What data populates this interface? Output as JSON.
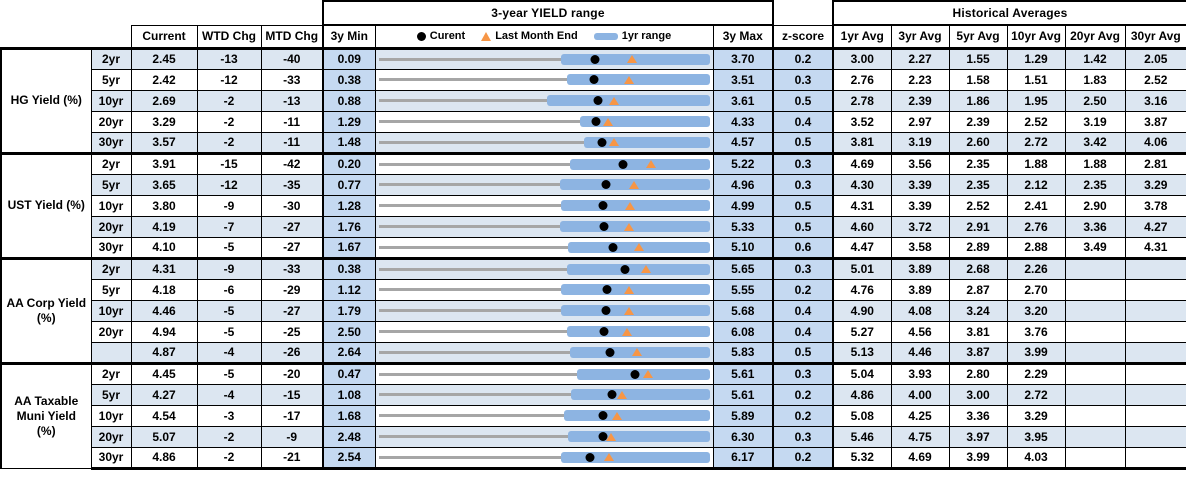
{
  "header": {
    "hist_title": "Historical Averages",
    "col_current": "Current",
    "col_wtd": "WTD Chg",
    "col_mtd": "MTD Chg",
    "col_min": "3y Min",
    "col_max": "3y Max",
    "col_zscore": "z-score",
    "avg_cols": [
      "1yr Avg",
      "3yr Avg",
      "5yr Avg",
      "10yr Avg",
      "20yr Avg",
      "30yr Avg"
    ],
    "legend": {
      "current": "Curent",
      "last_month": "Last Month End",
      "range": "1yr range"
    }
  },
  "colors": {
    "row_band": "#dce6f1",
    "minmax_fill": "#c5d9f1",
    "bar_1yr": "#8db4e2",
    "line_3yr": "#a6a6a6",
    "current_dot": "#000000",
    "last_month_triangle": "#f79646"
  },
  "chart_data": {
    "type": "table",
    "title": "3-year YIELD range",
    "legend_position": "top",
    "groups": [
      {
        "label": "HG Yield (%)",
        "rows": [
          {
            "tenor": "2yr",
            "current": "2.45",
            "wtd": "-13",
            "mtd": "-40",
            "min": "0.09",
            "max": "3.70",
            "z": "0.2",
            "avgs": [
              "3.00",
              "2.27",
              "1.55",
              "1.29",
              "1.42",
              "2.05"
            ],
            "last_month": 2.85,
            "bar_lo": 2.08,
            "bar_hi": 3.7
          },
          {
            "tenor": "5yr",
            "current": "2.42",
            "wtd": "-12",
            "mtd": "-33",
            "min": "0.38",
            "max": "3.51",
            "z": "0.3",
            "avgs": [
              "2.76",
              "2.23",
              "1.58",
              "1.51",
              "1.83",
              "2.52"
            ],
            "last_month": 2.75,
            "bar_lo": 2.16,
            "bar_hi": 3.51
          },
          {
            "tenor": "10yr",
            "current": "2.69",
            "wtd": "-2",
            "mtd": "-13",
            "min": "0.88",
            "max": "3.61",
            "z": "0.5",
            "avgs": [
              "2.78",
              "2.39",
              "1.86",
              "1.95",
              "2.50",
              "3.16"
            ],
            "last_month": 2.82,
            "bar_lo": 2.27,
            "bar_hi": 3.61
          },
          {
            "tenor": "20yr",
            "current": "3.29",
            "wtd": "-2",
            "mtd": "-11",
            "min": "1.29",
            "max": "4.33",
            "z": "0.4",
            "avgs": [
              "3.52",
              "2.97",
              "2.39",
              "2.52",
              "3.19",
              "3.87"
            ],
            "last_month": 3.4,
            "bar_lo": 3.14,
            "bar_hi": 4.33
          },
          {
            "tenor": "30yr",
            "current": "3.57",
            "wtd": "-2",
            "mtd": "-11",
            "min": "1.48",
            "max": "4.57",
            "z": "0.5",
            "avgs": [
              "3.81",
              "3.19",
              "2.60",
              "2.72",
              "3.42",
              "4.06"
            ],
            "last_month": 3.68,
            "bar_lo": 3.4,
            "bar_hi": 4.57
          }
        ]
      },
      {
        "label": "UST Yield (%)",
        "rows": [
          {
            "tenor": "2yr",
            "current": "3.91",
            "wtd": "-15",
            "mtd": "-42",
            "min": "0.20",
            "max": "5.22",
            "z": "0.3",
            "avgs": [
              "4.69",
              "3.56",
              "2.35",
              "1.88",
              "1.88",
              "2.81"
            ],
            "last_month": 4.33,
            "bar_lo": 3.11,
            "bar_hi": 5.22
          },
          {
            "tenor": "5yr",
            "current": "3.65",
            "wtd": "-12",
            "mtd": "-35",
            "min": "0.77",
            "max": "4.96",
            "z": "0.3",
            "avgs": [
              "4.30",
              "3.39",
              "2.35",
              "2.12",
              "2.35",
              "3.29"
            ],
            "last_month": 4.0,
            "bar_lo": 3.07,
            "bar_hi": 4.96
          },
          {
            "tenor": "10yr",
            "current": "3.80",
            "wtd": "-9",
            "mtd": "-30",
            "min": "1.28",
            "max": "4.99",
            "z": "0.5",
            "avgs": [
              "4.31",
              "3.39",
              "2.52",
              "2.41",
              "2.90",
              "3.78"
            ],
            "last_month": 4.1,
            "bar_lo": 3.32,
            "bar_hi": 4.99
          },
          {
            "tenor": "20yr",
            "current": "4.19",
            "wtd": "-7",
            "mtd": "-27",
            "min": "1.76",
            "max": "5.33",
            "z": "0.5",
            "avgs": [
              "4.60",
              "3.72",
              "2.91",
              "2.76",
              "3.36",
              "4.27"
            ],
            "last_month": 4.46,
            "bar_lo": 3.72,
            "bar_hi": 5.33
          },
          {
            "tenor": "30yr",
            "current": "4.10",
            "wtd": "-5",
            "mtd": "-27",
            "min": "1.67",
            "max": "5.10",
            "z": "0.6",
            "avgs": [
              "4.47",
              "3.58",
              "2.89",
              "2.88",
              "3.49",
              "4.31"
            ],
            "last_month": 4.37,
            "bar_lo": 3.63,
            "bar_hi": 5.1
          }
        ]
      },
      {
        "label": "AA Corp Yield (%)",
        "rows": [
          {
            "tenor": "2yr",
            "current": "4.31",
            "wtd": "-9",
            "mtd": "-33",
            "min": "0.38",
            "max": "5.65",
            "z": "0.3",
            "avgs": [
              "5.01",
              "3.89",
              "2.68",
              "2.26",
              "",
              ""
            ],
            "last_month": 4.64,
            "bar_lo": 3.38,
            "bar_hi": 5.65
          },
          {
            "tenor": "5yr",
            "current": "4.18",
            "wtd": "-6",
            "mtd": "-29",
            "min": "1.12",
            "max": "5.55",
            "z": "0.2",
            "avgs": [
              "4.76",
              "3.89",
              "2.87",
              "2.70",
              "",
              ""
            ],
            "last_month": 4.47,
            "bar_lo": 3.56,
            "bar_hi": 5.55
          },
          {
            "tenor": "10yr",
            "current": "4.46",
            "wtd": "-5",
            "mtd": "-27",
            "min": "1.79",
            "max": "5.68",
            "z": "0.4",
            "avgs": [
              "4.90",
              "4.08",
              "3.24",
              "3.20",
              "",
              ""
            ],
            "last_month": 4.73,
            "bar_lo": 3.93,
            "bar_hi": 5.68
          },
          {
            "tenor": "20yr",
            "current": "4.94",
            "wtd": "-5",
            "mtd": "-25",
            "min": "2.50",
            "max": "6.08",
            "z": "0.4",
            "avgs": [
              "5.27",
              "4.56",
              "3.81",
              "3.76",
              "",
              ""
            ],
            "last_month": 5.19,
            "bar_lo": 4.54,
            "bar_hi": 6.08
          },
          {
            "tenor": "",
            "current": "4.87",
            "wtd": "-4",
            "mtd": "-26",
            "min": "2.64",
            "max": "5.83",
            "z": "0.5",
            "avgs": [
              "5.13",
              "4.46",
              "3.87",
              "3.99",
              "",
              ""
            ],
            "last_month": 5.13,
            "bar_lo": 4.49,
            "bar_hi": 5.83
          }
        ]
      },
      {
        "label": "AA Taxable Muni Yield (%)",
        "rows": [
          {
            "tenor": "2yr",
            "current": "4.45",
            "wtd": "-5",
            "mtd": "-20",
            "min": "0.47",
            "max": "5.61",
            "z": "0.3",
            "avgs": [
              "5.04",
              "3.93",
              "2.80",
              "2.29",
              "",
              ""
            ],
            "last_month": 4.65,
            "bar_lo": 3.55,
            "bar_hi": 5.61
          },
          {
            "tenor": "5yr",
            "current": "4.27",
            "wtd": "-4",
            "mtd": "-15",
            "min": "1.08",
            "max": "5.61",
            "z": "0.2",
            "avgs": [
              "4.86",
              "4.00",
              "3.00",
              "2.72",
              "",
              ""
            ],
            "last_month": 4.42,
            "bar_lo": 3.71,
            "bar_hi": 5.61
          },
          {
            "tenor": "10yr",
            "current": "4.54",
            "wtd": "-3",
            "mtd": "-17",
            "min": "1.68",
            "max": "5.89",
            "z": "0.2",
            "avgs": [
              "5.08",
              "4.25",
              "3.36",
              "3.29",
              "",
              ""
            ],
            "last_month": 4.71,
            "bar_lo": 4.04,
            "bar_hi": 5.89
          },
          {
            "tenor": "20yr",
            "current": "5.07",
            "wtd": "-2",
            "mtd": "-9",
            "min": "2.48",
            "max": "6.30",
            "z": "0.3",
            "avgs": [
              "5.46",
              "4.75",
              "3.97",
              "3.95",
              "",
              ""
            ],
            "last_month": 5.16,
            "bar_lo": 4.66,
            "bar_hi": 6.3
          },
          {
            "tenor": "30yr",
            "current": "4.86",
            "wtd": "-2",
            "mtd": "-21",
            "min": "2.54",
            "max": "6.17",
            "z": "0.2",
            "avgs": [
              "5.32",
              "4.69",
              "3.99",
              "4.03",
              "",
              ""
            ],
            "last_month": 5.07,
            "bar_lo": 4.54,
            "bar_hi": 6.17
          }
        ]
      }
    ]
  }
}
